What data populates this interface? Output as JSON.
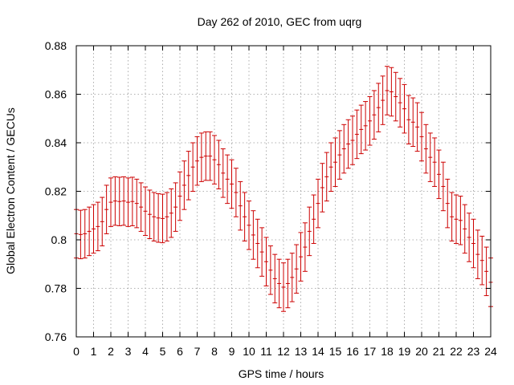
{
  "chart_data": {
    "type": "line",
    "title": "Day 262 of 2010, GEC from uqrg",
    "xlabel": "GPS time / hours",
    "ylabel": "Global Electron Content / GECUs",
    "xlim": [
      0,
      24
    ],
    "ylim": [
      0.76,
      0.88
    ],
    "xticks": [
      "0",
      "1",
      "2",
      "3",
      "4",
      "5",
      "6",
      "7",
      "8",
      "9",
      "10",
      "11",
      "12",
      "13",
      "14",
      "15",
      "16",
      "17",
      "18",
      "19",
      "20",
      "21",
      "22",
      "23",
      "24"
    ],
    "yticks": [
      "0.76",
      "0.78",
      "0.8",
      "0.82",
      "0.84",
      "0.86",
      "0.88"
    ],
    "grid": true,
    "legend": "none",
    "colors": {
      "series": "#cc0000",
      "grid": "#999999",
      "frame": "#000000"
    },
    "series": [
      {
        "error": 0.01,
        "points": [
          [
            0.0,
            0.8025
          ],
          [
            0.25,
            0.8022
          ],
          [
            0.5,
            0.8025
          ],
          [
            0.75,
            0.8035
          ],
          [
            1.0,
            0.8045
          ],
          [
            1.25,
            0.8055
          ],
          [
            1.5,
            0.8075
          ],
          [
            1.75,
            0.8125
          ],
          [
            2.0,
            0.8155
          ],
          [
            2.25,
            0.816
          ],
          [
            2.5,
            0.8158
          ],
          [
            2.75,
            0.816
          ],
          [
            3.0,
            0.8155
          ],
          [
            3.25,
            0.8158
          ],
          [
            3.5,
            0.815
          ],
          [
            3.75,
            0.8135
          ],
          [
            4.0,
            0.8118
          ],
          [
            4.25,
            0.8105
          ],
          [
            4.5,
            0.8095
          ],
          [
            4.75,
            0.809
          ],
          [
            5.0,
            0.8088
          ],
          [
            5.25,
            0.8095
          ],
          [
            5.5,
            0.811
          ],
          [
            5.75,
            0.8135
          ],
          [
            6.0,
            0.818
          ],
          [
            6.25,
            0.8225
          ],
          [
            6.5,
            0.8265
          ],
          [
            6.75,
            0.83
          ],
          [
            7.0,
            0.8325
          ],
          [
            7.25,
            0.834
          ],
          [
            7.5,
            0.8345
          ],
          [
            7.75,
            0.8345
          ],
          [
            8.0,
            0.833
          ],
          [
            8.25,
            0.831
          ],
          [
            8.5,
            0.8275
          ],
          [
            8.75,
            0.825
          ],
          [
            9.0,
            0.823
          ],
          [
            9.25,
            0.8195
          ],
          [
            9.5,
            0.814
          ],
          [
            9.75,
            0.8095
          ],
          [
            10.0,
            0.806
          ],
          [
            10.25,
            0.802
          ],
          [
            10.5,
            0.7985
          ],
          [
            10.75,
            0.795
          ],
          [
            11.0,
            0.791
          ],
          [
            11.25,
            0.7875
          ],
          [
            11.5,
            0.784
          ],
          [
            11.75,
            0.782
          ],
          [
            12.0,
            0.7805
          ],
          [
            12.25,
            0.782
          ],
          [
            12.5,
            0.7845
          ],
          [
            12.75,
            0.788
          ],
          [
            13.0,
            0.793
          ],
          [
            13.25,
            0.797
          ],
          [
            13.5,
            0.8035
          ],
          [
            13.75,
            0.8085
          ],
          [
            14.0,
            0.815
          ],
          [
            14.25,
            0.8215
          ],
          [
            14.5,
            0.826
          ],
          [
            14.75,
            0.83
          ],
          [
            15.0,
            0.832
          ],
          [
            15.25,
            0.835
          ],
          [
            15.5,
            0.8375
          ],
          [
            15.75,
            0.8395
          ],
          [
            16.0,
            0.841
          ],
          [
            16.25,
            0.8435
          ],
          [
            16.5,
            0.8455
          ],
          [
            16.75,
            0.847
          ],
          [
            17.0,
            0.849
          ],
          [
            17.25,
            0.8515
          ],
          [
            17.5,
            0.8545
          ],
          [
            17.75,
            0.8575
          ],
          [
            18.0,
            0.8615
          ],
          [
            18.25,
            0.861
          ],
          [
            18.5,
            0.859
          ],
          [
            18.75,
            0.8565
          ],
          [
            19.0,
            0.854
          ],
          [
            19.25,
            0.8495
          ],
          [
            19.5,
            0.8485
          ],
          [
            19.75,
            0.8465
          ],
          [
            20.0,
            0.8425
          ],
          [
            20.25,
            0.8375
          ],
          [
            20.5,
            0.834
          ],
          [
            20.75,
            0.832
          ],
          [
            21.0,
            0.827
          ],
          [
            21.25,
            0.822
          ],
          [
            21.5,
            0.815
          ],
          [
            21.75,
            0.8095
          ],
          [
            22.0,
            0.8085
          ],
          [
            22.25,
            0.808
          ],
          [
            22.5,
            0.8045
          ],
          [
            22.75,
            0.801
          ],
          [
            23.0,
            0.7985
          ],
          [
            23.25,
            0.794
          ],
          [
            23.5,
            0.7915
          ],
          [
            23.75,
            0.787
          ],
          [
            24.0,
            0.7825
          ]
        ]
      }
    ]
  }
}
